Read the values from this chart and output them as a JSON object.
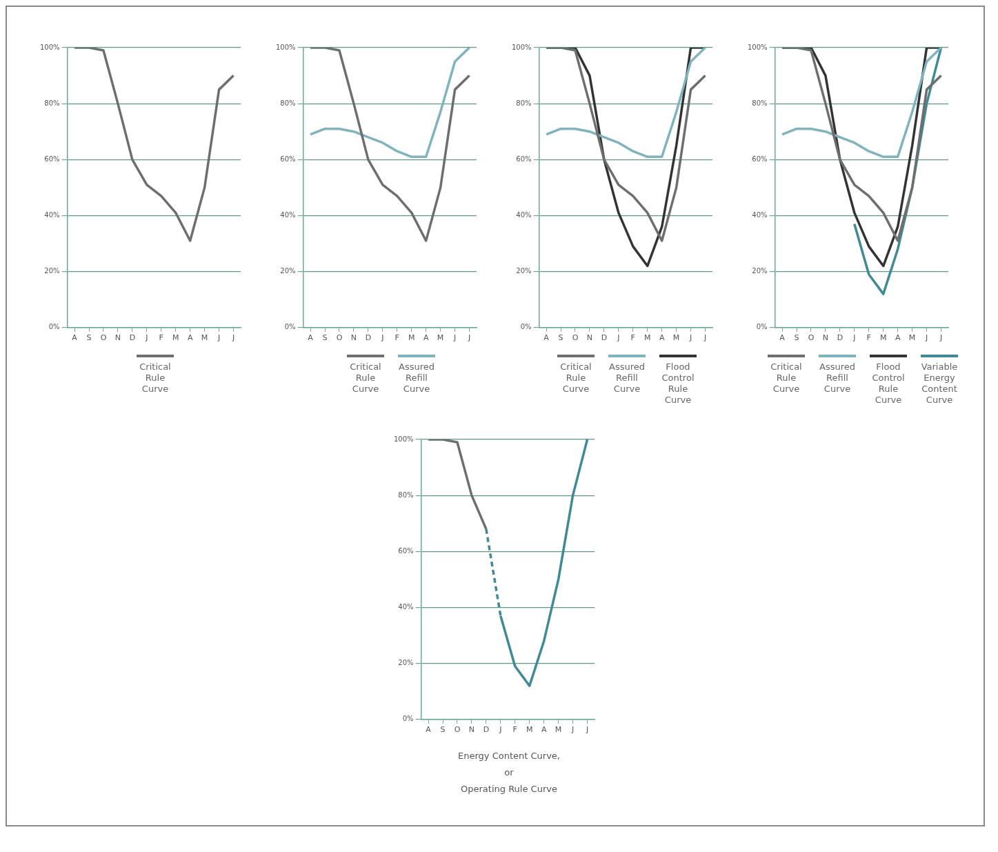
{
  "chart_data": [
    {
      "type": "line",
      "categories": [
        "A",
        "S",
        "O",
        "N",
        "D",
        "J",
        "F",
        "M",
        "A",
        "M",
        "J",
        "J"
      ],
      "ylim": [
        0,
        100
      ],
      "yticks": [
        {
          "value": 0,
          "label": "0%"
        },
        {
          "value": 20,
          "label": "20%"
        },
        {
          "value": 40,
          "label": "40%"
        },
        {
          "value": 60,
          "label": "60%"
        },
        {
          "value": 80,
          "label": "80%"
        },
        {
          "value": 100,
          "label": "100%"
        }
      ],
      "grid": "y",
      "legend": "bottom",
      "series": [
        {
          "name": "Critical Rule Curve",
          "color": "#6e6e6e",
          "values": [
            100,
            100,
            99,
            80,
            60,
            51,
            47,
            41,
            31,
            50,
            85,
            90
          ]
        }
      ]
    },
    {
      "type": "line",
      "categories": [
        "A",
        "S",
        "O",
        "N",
        "D",
        "J",
        "F",
        "M",
        "A",
        "M",
        "J",
        "J"
      ],
      "ylim": [
        0,
        100
      ],
      "yticks": [
        {
          "value": 0,
          "label": "0%"
        },
        {
          "value": 20,
          "label": "20%"
        },
        {
          "value": 40,
          "label": "40%"
        },
        {
          "value": 60,
          "label": "60%"
        },
        {
          "value": 80,
          "label": "80%"
        },
        {
          "value": 100,
          "label": "100%"
        }
      ],
      "grid": "y",
      "legend": "bottom",
      "series": [
        {
          "name": "Critical Rule Curve",
          "color": "#6e6e6e",
          "values": [
            100,
            100,
            99,
            80,
            60,
            51,
            47,
            41,
            31,
            50,
            85,
            90
          ]
        },
        {
          "name": "Assured Refill Curve",
          "color": "#7fb3bd",
          "values": [
            69,
            71,
            71,
            70,
            68,
            66,
            63,
            61,
            61,
            77,
            95,
            100
          ]
        }
      ]
    },
    {
      "type": "line",
      "categories": [
        "A",
        "S",
        "O",
        "N",
        "D",
        "J",
        "F",
        "M",
        "A",
        "M",
        "J",
        "J"
      ],
      "ylim": [
        0,
        100
      ],
      "yticks": [
        {
          "value": 0,
          "label": "0%"
        },
        {
          "value": 20,
          "label": "20%"
        },
        {
          "value": 40,
          "label": "40%"
        },
        {
          "value": 60,
          "label": "60%"
        },
        {
          "value": 80,
          "label": "80%"
        },
        {
          "value": 100,
          "label": "100%"
        }
      ],
      "grid": "y",
      "legend": "bottom",
      "series": [
        {
          "name": "Critical Rule Curve",
          "color": "#6e6e6e",
          "values": [
            100,
            100,
            99,
            80,
            60,
            51,
            47,
            41,
            31,
            50,
            85,
            90
          ]
        },
        {
          "name": "Assured Refill Curve",
          "color": "#7fb3bd",
          "values": [
            69,
            71,
            71,
            70,
            68,
            66,
            63,
            61,
            61,
            77,
            95,
            100
          ]
        },
        {
          "name": "Flood Control Rule Curve",
          "color": "#333333",
          "values": [
            100,
            100,
            100,
            90,
            60,
            41,
            29,
            22,
            36,
            65,
            100,
            100
          ]
        }
      ]
    },
    {
      "type": "line",
      "categories": [
        "A",
        "S",
        "O",
        "N",
        "D",
        "J",
        "F",
        "M",
        "A",
        "M",
        "J",
        "J"
      ],
      "ylim": [
        0,
        100
      ],
      "yticks": [
        {
          "value": 0,
          "label": "0%"
        },
        {
          "value": 20,
          "label": "20%"
        },
        {
          "value": 40,
          "label": "40%"
        },
        {
          "value": 60,
          "label": "60%"
        },
        {
          "value": 80,
          "label": "80%"
        },
        {
          "value": 100,
          "label": "100%"
        }
      ],
      "grid": "y",
      "legend": "bottom",
      "series": [
        {
          "name": "Critical Rule Curve",
          "color": "#6e6e6e",
          "values": [
            100,
            100,
            99,
            80,
            60,
            51,
            47,
            41,
            31,
            50,
            85,
            90
          ]
        },
        {
          "name": "Assured Refill Curve",
          "color": "#7fb3bd",
          "values": [
            69,
            71,
            71,
            70,
            68,
            66,
            63,
            61,
            61,
            77,
            95,
            100
          ]
        },
        {
          "name": "Flood Control Rule Curve",
          "color": "#333333",
          "values": [
            100,
            100,
            100,
            90,
            60,
            41,
            29,
            22,
            36,
            65,
            100,
            100
          ]
        },
        {
          "name": "Variable Energy Content Curve",
          "color": "#3f8a96",
          "values": [
            null,
            null,
            null,
            null,
            null,
            37,
            19,
            12,
            28,
            50,
            80,
            100
          ]
        }
      ]
    },
    {
      "type": "line",
      "categories": [
        "A",
        "S",
        "O",
        "N",
        "D",
        "J",
        "F",
        "M",
        "A",
        "M",
        "J",
        "J"
      ],
      "ylim": [
        0,
        100
      ],
      "yticks": [
        {
          "value": 0,
          "label": "0%"
        },
        {
          "value": 20,
          "label": "20%"
        },
        {
          "value": 40,
          "label": "40%"
        },
        {
          "value": 60,
          "label": "60%"
        },
        {
          "value": 80,
          "label": "80%"
        },
        {
          "value": 100,
          "label": "100%"
        }
      ],
      "grid": "y",
      "annotations": [
        "Energy Content Curve,",
        "or",
        "Operating Rule Curve"
      ],
      "series": [
        {
          "color": "#6e6e6e",
          "values": [
            100,
            100,
            99,
            80,
            68,
            null,
            null,
            null,
            null,
            null,
            null,
            null
          ]
        },
        {
          "color": "#3f8a96",
          "line_style": "dashed",
          "values": [
            null,
            null,
            null,
            null,
            68,
            37,
            null,
            null,
            null,
            null,
            null,
            null
          ]
        },
        {
          "color": "#3f8a96",
          "values": [
            null,
            null,
            null,
            null,
            null,
            37,
            19,
            12,
            28,
            50,
            80,
            100
          ]
        }
      ]
    }
  ]
}
